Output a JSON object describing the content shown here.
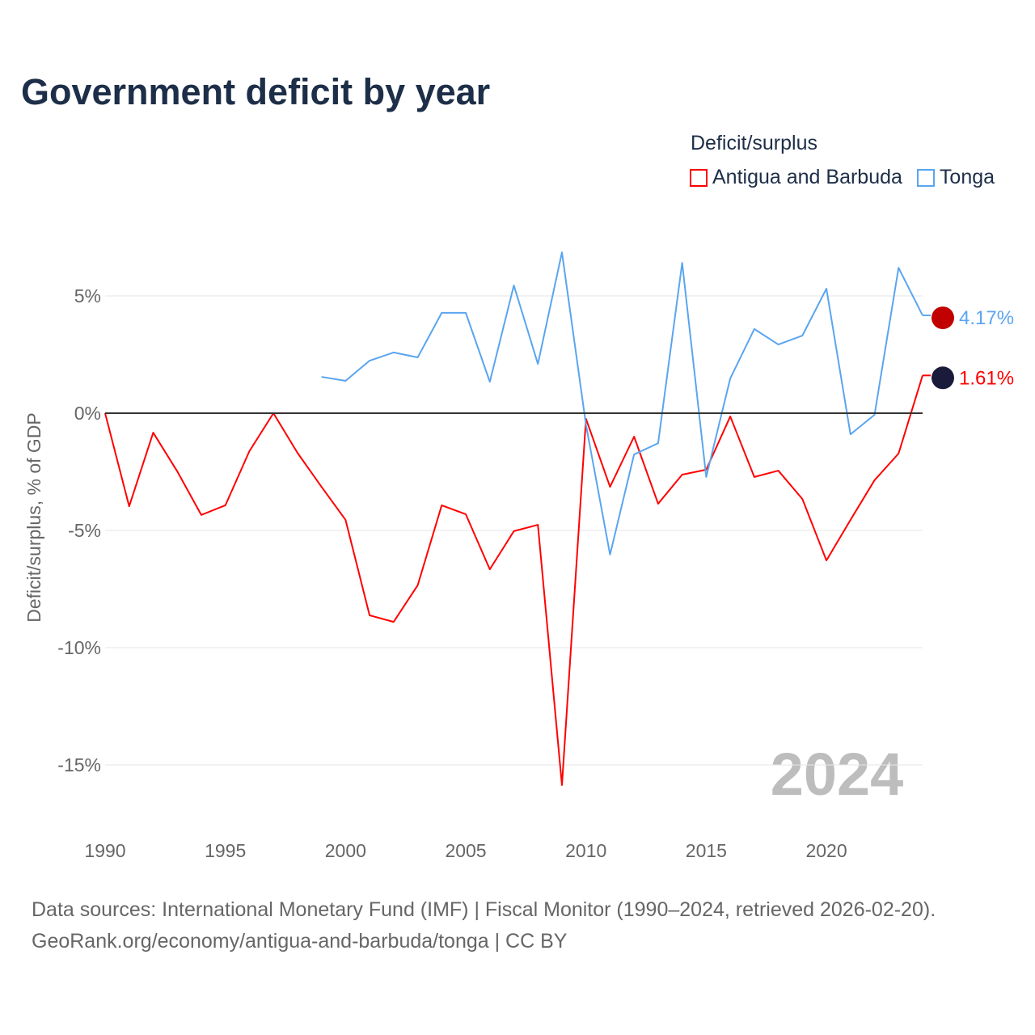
{
  "title": "Government deficit by year",
  "legend_title": "Deficit/surplus",
  "source_line1": "Data sources: International Monetary Fund (IMF) | Fiscal Monitor (1990–2024, retrieved 2026-02-20).",
  "source_line2": "GeoRank.org/economy/antigua-and-barbuda/tonga | CC BY",
  "year_watermark": "2024",
  "chart_data": {
    "type": "line",
    "title": "Government deficit by year",
    "xlabel": "",
    "ylabel": "Deficit/surplus, % of GDP",
    "xlim": [
      1990,
      2024
    ],
    "ylim": [
      -17,
      7
    ],
    "x_ticks": [
      1990,
      1995,
      2000,
      2005,
      2010,
      2015,
      2020
    ],
    "y_ticks": [
      5,
      0,
      -5,
      -10,
      -15
    ],
    "y_tick_labels": [
      "5%",
      "0%",
      "-5%",
      "-10%",
      "-15%"
    ],
    "legend_position": "top-right",
    "series": [
      {
        "name": "Antigua and Barbuda",
        "color": "#ff0000",
        "end_label": "1.61%",
        "x": [
          1990,
          1991,
          1992,
          1993,
          1994,
          1995,
          1996,
          1997,
          1998,
          1999,
          2000,
          2001,
          2002,
          2003,
          2004,
          2005,
          2006,
          2007,
          2008,
          2009,
          2010,
          2011,
          2012,
          2013,
          2014,
          2015,
          2016,
          2017,
          2018,
          2019,
          2020,
          2021,
          2022,
          2023,
          2024
        ],
        "values": [
          0,
          -3.97,
          -0.83,
          -2.48,
          -4.34,
          -3.93,
          -1.62,
          0,
          -1.69,
          -3.14,
          -4.55,
          -8.62,
          -8.9,
          -7.34,
          -3.93,
          -4.31,
          -6.66,
          -5.03,
          -4.76,
          -15.86,
          -0.24,
          -3.14,
          -1.0,
          -3.86,
          -2.62,
          -2.41,
          -0.14,
          -2.72,
          -2.45,
          -3.66,
          -6.28,
          -4.55,
          -2.86,
          -1.72,
          1.61
        ]
      },
      {
        "name": "Tonga",
        "color": "#5aa5f0",
        "end_label": "4.17%",
        "x": [
          1999,
          2000,
          2001,
          2002,
          2003,
          2004,
          2005,
          2006,
          2007,
          2008,
          2009,
          2010,
          2011,
          2012,
          2013,
          2014,
          2015,
          2016,
          2017,
          2018,
          2019,
          2020,
          2021,
          2022,
          2023,
          2024
        ],
        "values": [
          1.55,
          1.38,
          2.24,
          2.59,
          2.38,
          4.28,
          4.28,
          1.34,
          5.45,
          2.1,
          6.86,
          -0.5,
          -6.03,
          -1.76,
          -1.28,
          6.41,
          -2.72,
          1.48,
          3.59,
          2.93,
          3.31,
          5.31,
          -0.9,
          -0.07,
          6.2,
          4.17
        ]
      }
    ]
  }
}
